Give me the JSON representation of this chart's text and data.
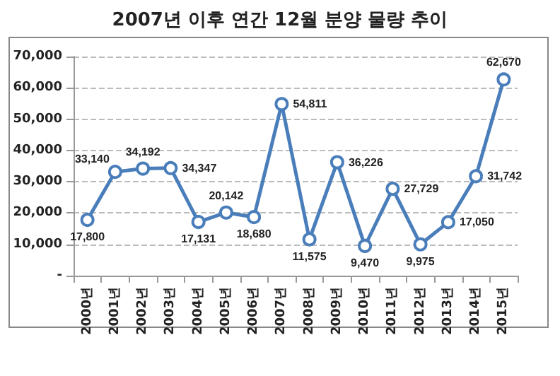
{
  "chart_data": {
    "type": "line",
    "title": "2007년 이후 연간 12월 분양 물량 추이",
    "categories": [
      "2000년",
      "2001년",
      "2002년",
      "2003년",
      "2004년",
      "2005년",
      "2006년",
      "2007년",
      "2008년",
      "2009년",
      "2010년",
      "2011년",
      "2012년",
      "2013년",
      "2014년",
      "2015년"
    ],
    "series": [
      {
        "color": "#4a7ebb",
        "values": [
          17800,
          33140,
          34192,
          34347,
          17131,
          20142,
          18680,
          54811,
          11575,
          36226,
          9470,
          27729,
          9975,
          17050,
          31742,
          62670
        ],
        "value_labels": [
          "17,800",
          "33,140",
          "34,192",
          "34,347",
          "17,131",
          "20,142",
          "18,680",
          "54,811",
          "11,575",
          "36,226",
          "9,470",
          "27,729",
          "9,975",
          "17,050",
          "31,742",
          "62,670"
        ]
      }
    ],
    "ylim": [
      0,
      70000
    ],
    "yticks": [
      {
        "value": 0,
        "label": "-"
      },
      {
        "value": 10000,
        "label": "10,000"
      },
      {
        "value": 20000,
        "label": "20,000"
      },
      {
        "value": 30000,
        "label": "30,000"
      },
      {
        "value": 40000,
        "label": "40,000"
      },
      {
        "value": 50000,
        "label": "50,000"
      },
      {
        "value": 60000,
        "label": "60,000"
      },
      {
        "value": 70000,
        "label": "70,000"
      }
    ],
    "grid": "y",
    "marker": "circle",
    "line_style": "solid"
  }
}
